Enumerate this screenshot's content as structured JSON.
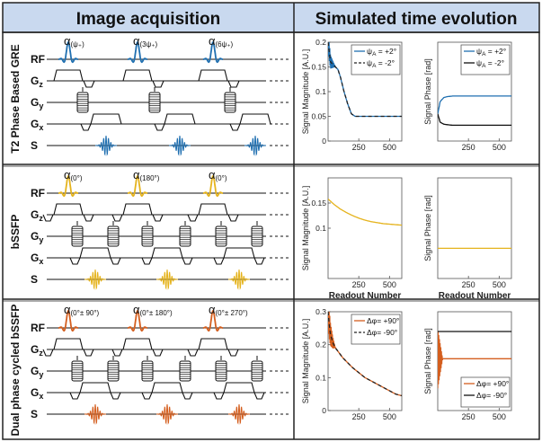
{
  "headers": {
    "left": "Image acquisition",
    "right": "Simulated time evolution"
  },
  "rows": [
    {
      "label": "T2 Phase Based GRE",
      "color": "#1f6fb0",
      "flips": [
        {
          "sub": "(ψ₊)"
        },
        {
          "sub": "(3ψ₊)"
        },
        {
          "sub": "(6ψ₊)"
        }
      ]
    },
    {
      "label": "bSSFP",
      "color": "#e5b31c",
      "flips": [
        {
          "sub": "(0°)"
        },
        {
          "sub": "(180°)"
        },
        {
          "sub": "(0°)"
        }
      ]
    },
    {
      "label": "Dual phase cycled bSSFP",
      "color": "#d45e1e",
      "flips": [
        {
          "sub": "(0°± 90°)"
        },
        {
          "sub": "(0°± 180°)"
        },
        {
          "sub": "(0°± 270°)"
        }
      ]
    }
  ],
  "channels": {
    "rf": {
      "main": "RF",
      "sub": ""
    },
    "gz": {
      "main": "G",
      "sub": "z"
    },
    "gy": {
      "main": "G",
      "sub": "y"
    },
    "gx": {
      "main": "G",
      "sub": "x"
    },
    "s": {
      "main": "S",
      "sub": ""
    }
  },
  "flip_symbol": "α",
  "chart_data": [
    {
      "type": "line",
      "ylabel": "Signal Magnitude [A.U.]",
      "xlabel": "",
      "xlim": [
        0,
        600
      ],
      "ylim": [
        0,
        0.2
      ],
      "xticks": [
        250,
        500
      ],
      "yticks": [
        0,
        0.05,
        0.1,
        0.15,
        0.2
      ],
      "ytick_labels": [
        "0",
        "0.05",
        "0.1",
        "0.15",
        "0.2"
      ],
      "legend_position": "top-right",
      "series": [
        {
          "name": "ψ_A = +2°",
          "legend_main": "ψ",
          "legend_sub": "A",
          "legend_rest": " = +2°",
          "color": "#1f6fb0",
          "dash": "solid",
          "x": [
            0,
            10,
            20,
            40,
            60,
            80,
            100,
            130,
            160,
            190,
            220,
            250,
            300,
            400,
            500,
            600
          ],
          "y": [
            0.2,
            0.18,
            0.16,
            0.155,
            0.15,
            0.145,
            0.13,
            0.1,
            0.075,
            0.055,
            0.05,
            0.05,
            0.05,
            0.05,
            0.05,
            0.05
          ],
          "oscillation": {
            "until": 60,
            "amplitude": 0.02
          }
        },
        {
          "name": "ψ_A = -2°",
          "legend_main": "ψ",
          "legend_sub": "A",
          "legend_rest": " = -2°",
          "color": "#222222",
          "dash": "4 3",
          "x": [
            0,
            10,
            20,
            40,
            60,
            80,
            100,
            130,
            160,
            190,
            220,
            250,
            300,
            400,
            500,
            600
          ],
          "y": [
            0.2,
            0.18,
            0.16,
            0.155,
            0.15,
            0.145,
            0.13,
            0.1,
            0.075,
            0.055,
            0.05,
            0.05,
            0.05,
            0.05,
            0.05,
            0.05
          ]
        }
      ]
    },
    {
      "type": "line",
      "ylabel": "Signal Phase [rad]",
      "xlabel": "",
      "xlim": [
        0,
        600
      ],
      "ylim": [
        -1,
        1
      ],
      "xticks": [
        250,
        500
      ],
      "yticks": [],
      "ytick_labels": [],
      "legend_position": "top-right",
      "series": [
        {
          "name": "ψ_A = +2°",
          "legend_main": "ψ",
          "legend_sub": "A",
          "legend_rest": " = +2°",
          "color": "#1f6fb0",
          "dash": "solid",
          "x": [
            0,
            20,
            50,
            80,
            120,
            180,
            250,
            350,
            450,
            600
          ],
          "y": [
            -0.45,
            -0.2,
            -0.12,
            -0.1,
            -0.09,
            -0.09,
            -0.09,
            -0.09,
            -0.09,
            -0.09
          ]
        },
        {
          "name": "ψ_A = -2°",
          "legend_main": "ψ",
          "legend_sub": "A",
          "legend_rest": " = -2°",
          "color": "#111111",
          "dash": "solid",
          "x": [
            0,
            20,
            50,
            80,
            120,
            180,
            250,
            350,
            450,
            600
          ],
          "y": [
            -0.45,
            -0.62,
            -0.66,
            -0.67,
            -0.68,
            -0.68,
            -0.68,
            -0.68,
            -0.68,
            -0.68
          ]
        }
      ]
    },
    {
      "type": "line",
      "ylabel": "Signal Magnitude [A.U.]",
      "xlabel": "Readout Number",
      "xlim": [
        0,
        600
      ],
      "ylim": [
        0,
        0.2
      ],
      "xticks": [
        250,
        500
      ],
      "yticks": [
        0.1,
        0.15
      ],
      "ytick_labels": [
        "0.1",
        "0.15"
      ],
      "legend_position": "none",
      "series": [
        {
          "name": "",
          "color": "#e5b31c",
          "dash": "solid",
          "x": [
            0,
            50,
            100,
            150,
            200,
            250,
            300,
            350,
            400,
            450,
            500,
            550,
            600
          ],
          "y": [
            0.158,
            0.147,
            0.138,
            0.131,
            0.125,
            0.12,
            0.116,
            0.113,
            0.111,
            0.109,
            0.108,
            0.107,
            0.106
          ]
        }
      ]
    },
    {
      "type": "line",
      "ylabel": "Signal Phase [rad]",
      "xlabel": "Readout Number",
      "xlim": [
        0,
        600
      ],
      "ylim": [
        -1,
        1
      ],
      "xticks": [
        250,
        500
      ],
      "yticks": [],
      "ytick_labels": [],
      "legend_position": "none",
      "series": [
        {
          "name": "",
          "color": "#e5b31c",
          "dash": "solid",
          "x": [
            0,
            600
          ],
          "y": [
            -0.4,
            -0.4
          ]
        }
      ]
    },
    {
      "type": "line",
      "ylabel": "Signal Magnitude [A.U.]",
      "xlabel": "",
      "xlim": [
        0,
        600
      ],
      "ylim": [
        0,
        0.3
      ],
      "xticks": [
        250,
        500
      ],
      "yticks": [
        0,
        0.1,
        0.2,
        0.3
      ],
      "ytick_labels": [
        "0",
        "0.1",
        "0.2",
        "0.3"
      ],
      "legend_position": "top-right",
      "series": [
        {
          "name": "Δφ= +90°",
          "legend_main": "Δφ= +90°",
          "legend_sub": "",
          "legend_rest": "",
          "color": "#d45e1e",
          "dash": "solid",
          "x": [
            0,
            10,
            20,
            40,
            60,
            90,
            120,
            160,
            200,
            250,
            300,
            350,
            400,
            450,
            500,
            550,
            600
          ],
          "y": [
            0.3,
            0.26,
            0.23,
            0.205,
            0.19,
            0.175,
            0.16,
            0.145,
            0.13,
            0.115,
            0.1,
            0.09,
            0.08,
            0.07,
            0.06,
            0.05,
            0.045
          ],
          "oscillation": {
            "until": 60,
            "amplitude": 0.05
          }
        },
        {
          "name": "Δφ= -90°",
          "legend_main": "Δφ= -90°",
          "legend_sub": "",
          "legend_rest": "",
          "color": "#222222",
          "dash": "4 3",
          "x": [
            0,
            10,
            20,
            40,
            60,
            90,
            120,
            160,
            200,
            250,
            300,
            350,
            400,
            450,
            500,
            550,
            600
          ],
          "y": [
            0.3,
            0.26,
            0.23,
            0.205,
            0.19,
            0.175,
            0.16,
            0.145,
            0.13,
            0.115,
            0.1,
            0.09,
            0.08,
            0.07,
            0.06,
            0.05,
            0.045
          ]
        }
      ]
    },
    {
      "type": "line",
      "ylabel": "Signal Phase [rad]",
      "xlabel": "",
      "xlim": [
        0,
        600
      ],
      "ylim": [
        -1,
        1
      ],
      "xticks": [
        250,
        500
      ],
      "yticks": [],
      "ytick_labels": [],
      "legend_position": "bottom-right",
      "series": [
        {
          "name": "Δφ= +90°",
          "legend_main": "Δφ= +90°",
          "legend_sub": "",
          "legend_rest": "",
          "color": "#d45e1e",
          "dash": "solid",
          "x": [
            0,
            20,
            60,
            120,
            200,
            300,
            400,
            500,
            600
          ],
          "y": [
            0.05,
            0.05,
            0.05,
            0.05,
            0.05,
            0.05,
            0.05,
            0.05,
            0.05
          ],
          "oscillation": {
            "until": 40,
            "amplitude": 0.6
          }
        },
        {
          "name": "Δφ= -90°",
          "legend_main": "Δφ= -90°",
          "legend_sub": "",
          "legend_rest": "",
          "color": "#111111",
          "dash": "solid",
          "x": [
            0,
            20,
            60,
            120,
            200,
            300,
            400,
            500,
            600
          ],
          "y": [
            0.6,
            0.6,
            0.6,
            0.6,
            0.6,
            0.6,
            0.6,
            0.6,
            0.6
          ]
        }
      ]
    }
  ]
}
